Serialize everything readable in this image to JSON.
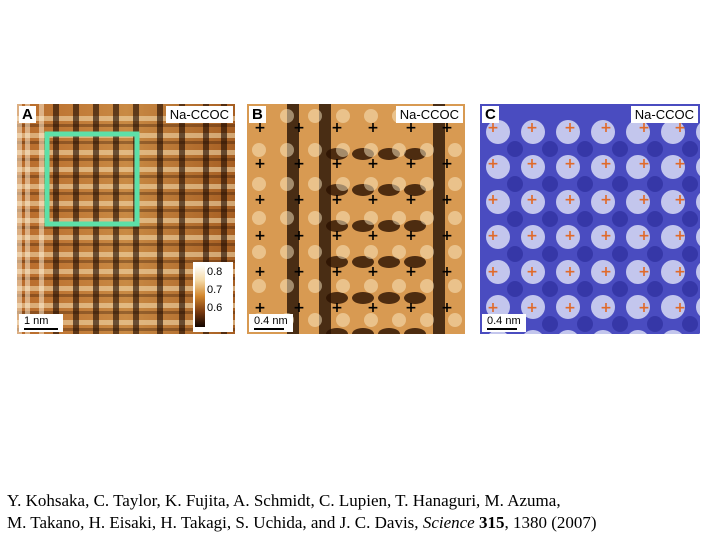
{
  "panels": [
    {
      "letter": "A",
      "tag": "Na-CCOC",
      "scale": "1 nm"
    },
    {
      "letter": "B",
      "tag": "Na-CCOC",
      "scale": "0.4 nm"
    },
    {
      "letter": "C",
      "tag": "Na-CCOC",
      "scale": "0.4 nm"
    }
  ],
  "colorbar": {
    "ticks": [
      "0.8",
      "0.7",
      "0.6"
    ]
  },
  "citation": {
    "line1": "Y. Kohsaka, C. Taylor, K. Fujita, A. Schmidt, C. Lupien, T. Hanaguri, M. Azuma,",
    "line2_pre": "M. Takano, H. Eisaki, H. Takagi, S. Uchida, and J. C. Davis, ",
    "journal": "Science",
    "volume": "315",
    "pages_year": ", 1380 (2007)"
  },
  "colors": {
    "highlight_box": "#5de0a8",
    "marker_b": "#000000",
    "marker_c": "#e06a2a",
    "panel_c_bg": "#4a4cc0"
  }
}
